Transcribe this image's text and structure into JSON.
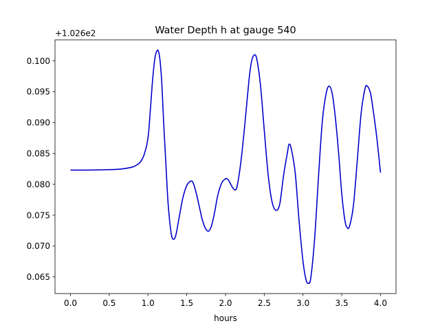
{
  "chart_data": {
    "type": "line",
    "title": "Water Depth h at gauge 540",
    "xlabel": "hours",
    "ylabel": "",
    "offset_text": "+1.026e2",
    "y_offset": 102.6,
    "xlim": [
      -0.2,
      4.2
    ],
    "ylim": [
      0.0623,
      0.1034
    ],
    "x_ticks": [
      0.0,
      0.5,
      1.0,
      1.5,
      2.0,
      2.5,
      3.0,
      3.5,
      4.0
    ],
    "x_tick_labels": [
      "0.0",
      "0.5",
      "1.0",
      "1.5",
      "2.0",
      "2.5",
      "3.0",
      "3.5",
      "4.0"
    ],
    "y_ticks": [
      0.065,
      0.07,
      0.075,
      0.08,
      0.085,
      0.09,
      0.095,
      0.1
    ],
    "y_tick_labels": [
      "0.065",
      "0.070",
      "0.075",
      "0.080",
      "0.085",
      "0.090",
      "0.095",
      "0.100"
    ],
    "grid": false,
    "series": [
      {
        "color": "#0000cc",
        "x": [
          0.0,
          0.1,
          0.2,
          0.3,
          0.4,
          0.5,
          0.6,
          0.7,
          0.8,
          0.85,
          0.9,
          0.95,
          1.0,
          1.03,
          1.06,
          1.09,
          1.12,
          1.14,
          1.16,
          1.18,
          1.2,
          1.23,
          1.26,
          1.3,
          1.33,
          1.36,
          1.4,
          1.45,
          1.5,
          1.55,
          1.58,
          1.62,
          1.66,
          1.7,
          1.74,
          1.78,
          1.82,
          1.86,
          1.9,
          1.95,
          2.0,
          2.03,
          2.06,
          2.09,
          2.12,
          2.15,
          2.2,
          2.25,
          2.3,
          2.33,
          2.36,
          2.4,
          2.45,
          2.5,
          2.55,
          2.6,
          2.65,
          2.7,
          2.75,
          2.8,
          2.82,
          2.85,
          2.9,
          2.95,
          3.0,
          3.04,
          3.07,
          3.1,
          3.15,
          3.2,
          3.25,
          3.3,
          3.34,
          3.38,
          3.42,
          3.46,
          3.5,
          3.54,
          3.57,
          3.6,
          3.65,
          3.7,
          3.75,
          3.8,
          3.83,
          3.87,
          3.9,
          3.95,
          4.0
        ],
        "y": [
          0.0823,
          0.0823,
          0.0823,
          0.08232,
          0.08235,
          0.08238,
          0.08243,
          0.08255,
          0.0828,
          0.0831,
          0.0836,
          0.0848,
          0.0875,
          0.092,
          0.097,
          0.1005,
          0.1017,
          0.1013,
          0.0995,
          0.096,
          0.0905,
          0.0835,
          0.0768,
          0.072,
          0.0711,
          0.0718,
          0.0745,
          0.0778,
          0.0798,
          0.0805,
          0.0803,
          0.0787,
          0.0765,
          0.0743,
          0.0729,
          0.0724,
          0.0733,
          0.0755,
          0.0782,
          0.0802,
          0.0809,
          0.0808,
          0.0802,
          0.0795,
          0.0791,
          0.0797,
          0.0838,
          0.0898,
          0.0965,
          0.0995,
          0.1008,
          0.1005,
          0.0962,
          0.0888,
          0.0816,
          0.0772,
          0.0758,
          0.0768,
          0.0815,
          0.0852,
          0.0865,
          0.0857,
          0.0818,
          0.074,
          0.0675,
          0.0645,
          0.064,
          0.0648,
          0.0712,
          0.0812,
          0.0903,
          0.0948,
          0.0959,
          0.0945,
          0.0905,
          0.085,
          0.0785,
          0.0742,
          0.073,
          0.0732,
          0.0765,
          0.0838,
          0.0915,
          0.0955,
          0.0959,
          0.0948,
          0.0925,
          0.0878,
          0.0819
        ]
      }
    ]
  }
}
